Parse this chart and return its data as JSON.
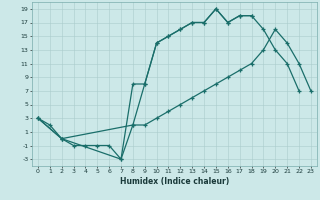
{
  "xlabel": "Humidex (Indice chaleur)",
  "background_color": "#cce8e8",
  "grid_color": "#aacccc",
  "line_color": "#1a6e6a",
  "xlim": [
    -0.5,
    23.5
  ],
  "ylim": [
    -4,
    20
  ],
  "xticks": [
    0,
    1,
    2,
    3,
    4,
    5,
    6,
    7,
    8,
    9,
    10,
    11,
    12,
    13,
    14,
    15,
    16,
    17,
    18,
    19,
    20,
    21,
    22,
    23
  ],
  "yticks": [
    -3,
    -1,
    1,
    3,
    5,
    7,
    9,
    11,
    13,
    15,
    17,
    19
  ],
  "line1_x": [
    0,
    1,
    2,
    3,
    4,
    5,
    6,
    7,
    8,
    9,
    10,
    11,
    12,
    13,
    14,
    15,
    16,
    17,
    18
  ],
  "line1_y": [
    3,
    2,
    0,
    -1,
    -1,
    -1,
    -1,
    -3,
    8,
    8,
    14,
    15,
    16,
    17,
    17,
    19,
    17,
    18,
    18
  ],
  "line2_x": [
    0,
    2,
    7,
    8,
    9,
    10,
    11,
    12,
    13,
    14,
    15,
    16,
    17,
    18,
    19,
    20,
    21,
    22
  ],
  "line2_y": [
    3,
    0,
    -3,
    2,
    8,
    14,
    15,
    16,
    17,
    17,
    19,
    17,
    18,
    18,
    16,
    13,
    11,
    7
  ],
  "line3_x": [
    0,
    2,
    8,
    9,
    10,
    11,
    12,
    13,
    14,
    15,
    16,
    17,
    18,
    19,
    20,
    21,
    22,
    23
  ],
  "line3_y": [
    3,
    0,
    2,
    2,
    3,
    4,
    5,
    6,
    7,
    8,
    9,
    10,
    11,
    13,
    16,
    14,
    11,
    7
  ]
}
